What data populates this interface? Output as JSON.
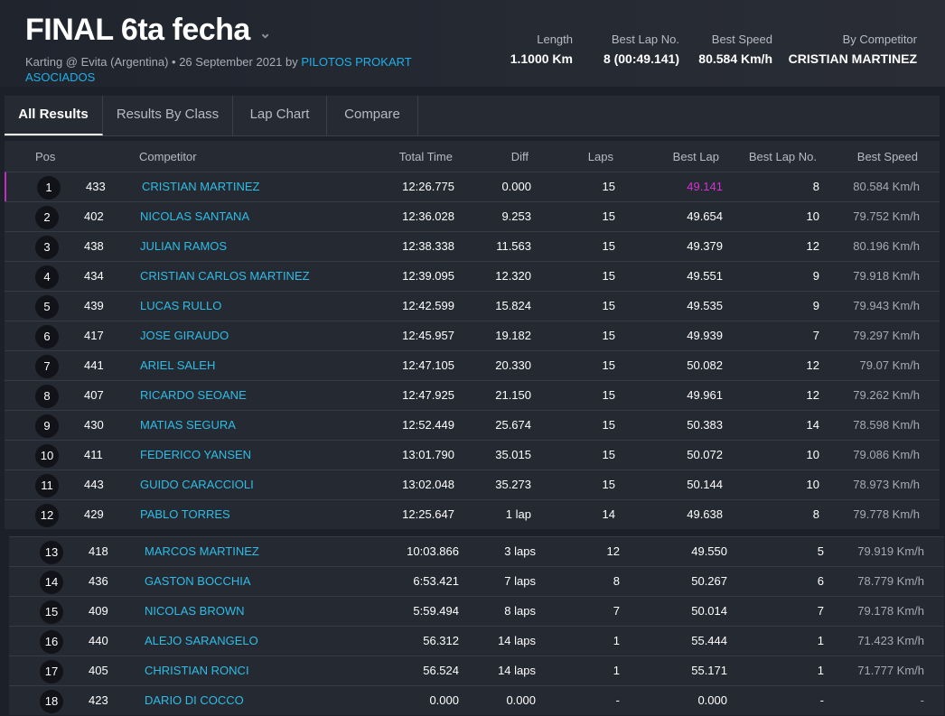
{
  "event": {
    "title": "FINAL 6ta fecha",
    "subtitle_prefix": "Karting @ Evita (Argentina) • 26 September 2021 by",
    "organizer": "PILOTOS PROKART ASOCIADOS"
  },
  "stats": {
    "length_label": "Length",
    "length_value": "1.1000 Km",
    "best_lap_no_label": "Best Lap No.",
    "best_lap_no_value": "8 (00:49.141)",
    "best_speed_label": "Best Speed",
    "best_speed_value": "80.584 Km/h",
    "by_competitor_label": "By Competitor",
    "by_competitor_value": "CRISTIAN MARTINEZ"
  },
  "tabs": [
    "All Results",
    "Results By Class",
    "Lap Chart",
    "Compare"
  ],
  "columns": {
    "pos": "Pos",
    "competitor": "Competitor",
    "total_time": "Total Time",
    "diff": "Diff",
    "laps": "Laps",
    "best_lap": "Best Lap",
    "best_lap_no": "Best Lap No.",
    "best_speed": "Best Speed"
  },
  "rows": [
    {
      "pos": "1",
      "num": "433",
      "name": "CRISTIAN MARTINEZ",
      "total": "12:26.775",
      "diff": "0.000",
      "laps": "15",
      "best": "49.141",
      "best_no": "8",
      "speed": "80.584 Km/h"
    },
    {
      "pos": "2",
      "num": "402",
      "name": "NICOLAS SANTANA",
      "total": "12:36.028",
      "diff": "9.253",
      "laps": "15",
      "best": "49.654",
      "best_no": "10",
      "speed": "79.752 Km/h"
    },
    {
      "pos": "3",
      "num": "438",
      "name": "JULIAN RAMOS",
      "total": "12:38.338",
      "diff": "11.563",
      "laps": "15",
      "best": "49.379",
      "best_no": "12",
      "speed": "80.196 Km/h"
    },
    {
      "pos": "4",
      "num": "434",
      "name": "CRISTIAN CARLOS MARTINEZ",
      "total": "12:39.095",
      "diff": "12.320",
      "laps": "15",
      "best": "49.551",
      "best_no": "9",
      "speed": "79.918 Km/h"
    },
    {
      "pos": "5",
      "num": "439",
      "name": "LUCAS RULLO",
      "total": "12:42.599",
      "diff": "15.824",
      "laps": "15",
      "best": "49.535",
      "best_no": "9",
      "speed": "79.943 Km/h"
    },
    {
      "pos": "6",
      "num": "417",
      "name": "JOSE GIRAUDO",
      "total": "12:45.957",
      "diff": "19.182",
      "laps": "15",
      "best": "49.939",
      "best_no": "7",
      "speed": "79.297 Km/h"
    },
    {
      "pos": "7",
      "num": "441",
      "name": "ARIEL SALEH",
      "total": "12:47.105",
      "diff": "20.330",
      "laps": "15",
      "best": "50.082",
      "best_no": "12",
      "speed": "79.07 Km/h"
    },
    {
      "pos": "8",
      "num": "407",
      "name": "RICARDO SEOANE",
      "total": "12:47.925",
      "diff": "21.150",
      "laps": "15",
      "best": "49.961",
      "best_no": "12",
      "speed": "79.262 Km/h"
    },
    {
      "pos": "9",
      "num": "430",
      "name": "MATIAS SEGURA",
      "total": "12:52.449",
      "diff": "25.674",
      "laps": "15",
      "best": "50.383",
      "best_no": "14",
      "speed": "78.598 Km/h"
    },
    {
      "pos": "10",
      "num": "411",
      "name": "FEDERICO YANSEN",
      "total": "13:01.790",
      "diff": "35.015",
      "laps": "15",
      "best": "50.072",
      "best_no": "10",
      "speed": "79.086 Km/h"
    },
    {
      "pos": "11",
      "num": "443",
      "name": "GUIDO CARACCIOLI",
      "total": "13:02.048",
      "diff": "35.273",
      "laps": "15",
      "best": "50.144",
      "best_no": "10",
      "speed": "78.973 Km/h"
    },
    {
      "pos": "12",
      "num": "429",
      "name": "PABLO TORRES",
      "total": "12:25.647",
      "diff": "1 lap",
      "laps": "14",
      "best": "49.638",
      "best_no": "8",
      "speed": "79.778 Km/h"
    },
    {
      "pos": "13",
      "num": "418",
      "name": "MARCOS MARTINEZ",
      "total": "10:03.866",
      "diff": "3 laps",
      "laps": "12",
      "best": "49.550",
      "best_no": "5",
      "speed": "79.919 Km/h"
    },
    {
      "pos": "14",
      "num": "436",
      "name": "GASTON BOCCHIA",
      "total": "6:53.421",
      "diff": "7 laps",
      "laps": "8",
      "best": "50.267",
      "best_no": "6",
      "speed": "78.779 Km/h"
    },
    {
      "pos": "15",
      "num": "409",
      "name": "NICOLAS BROWN",
      "total": "5:59.494",
      "diff": "8 laps",
      "laps": "7",
      "best": "50.014",
      "best_no": "7",
      "speed": "79.178 Km/h"
    },
    {
      "pos": "16",
      "num": "440",
      "name": "ALEJO SARANGELO",
      "total": "56.312",
      "diff": "14 laps",
      "laps": "1",
      "best": "55.444",
      "best_no": "1",
      "speed": "71.423 Km/h"
    },
    {
      "pos": "17",
      "num": "405",
      "name": "CHRISTIAN RONCI",
      "total": "56.524",
      "diff": "14 laps",
      "laps": "1",
      "best": "55.171",
      "best_no": "1",
      "speed": "71.777 Km/h"
    },
    {
      "pos": "18",
      "num": "423",
      "name": "DARIO DI COCCO",
      "total": "0.000",
      "diff": "0.000",
      "laps": "-",
      "best": "0.000",
      "best_no": "-",
      "speed": "-"
    }
  ],
  "colors": {
    "accent": "#2fbde6",
    "fastest_lap": "#d233d2"
  }
}
